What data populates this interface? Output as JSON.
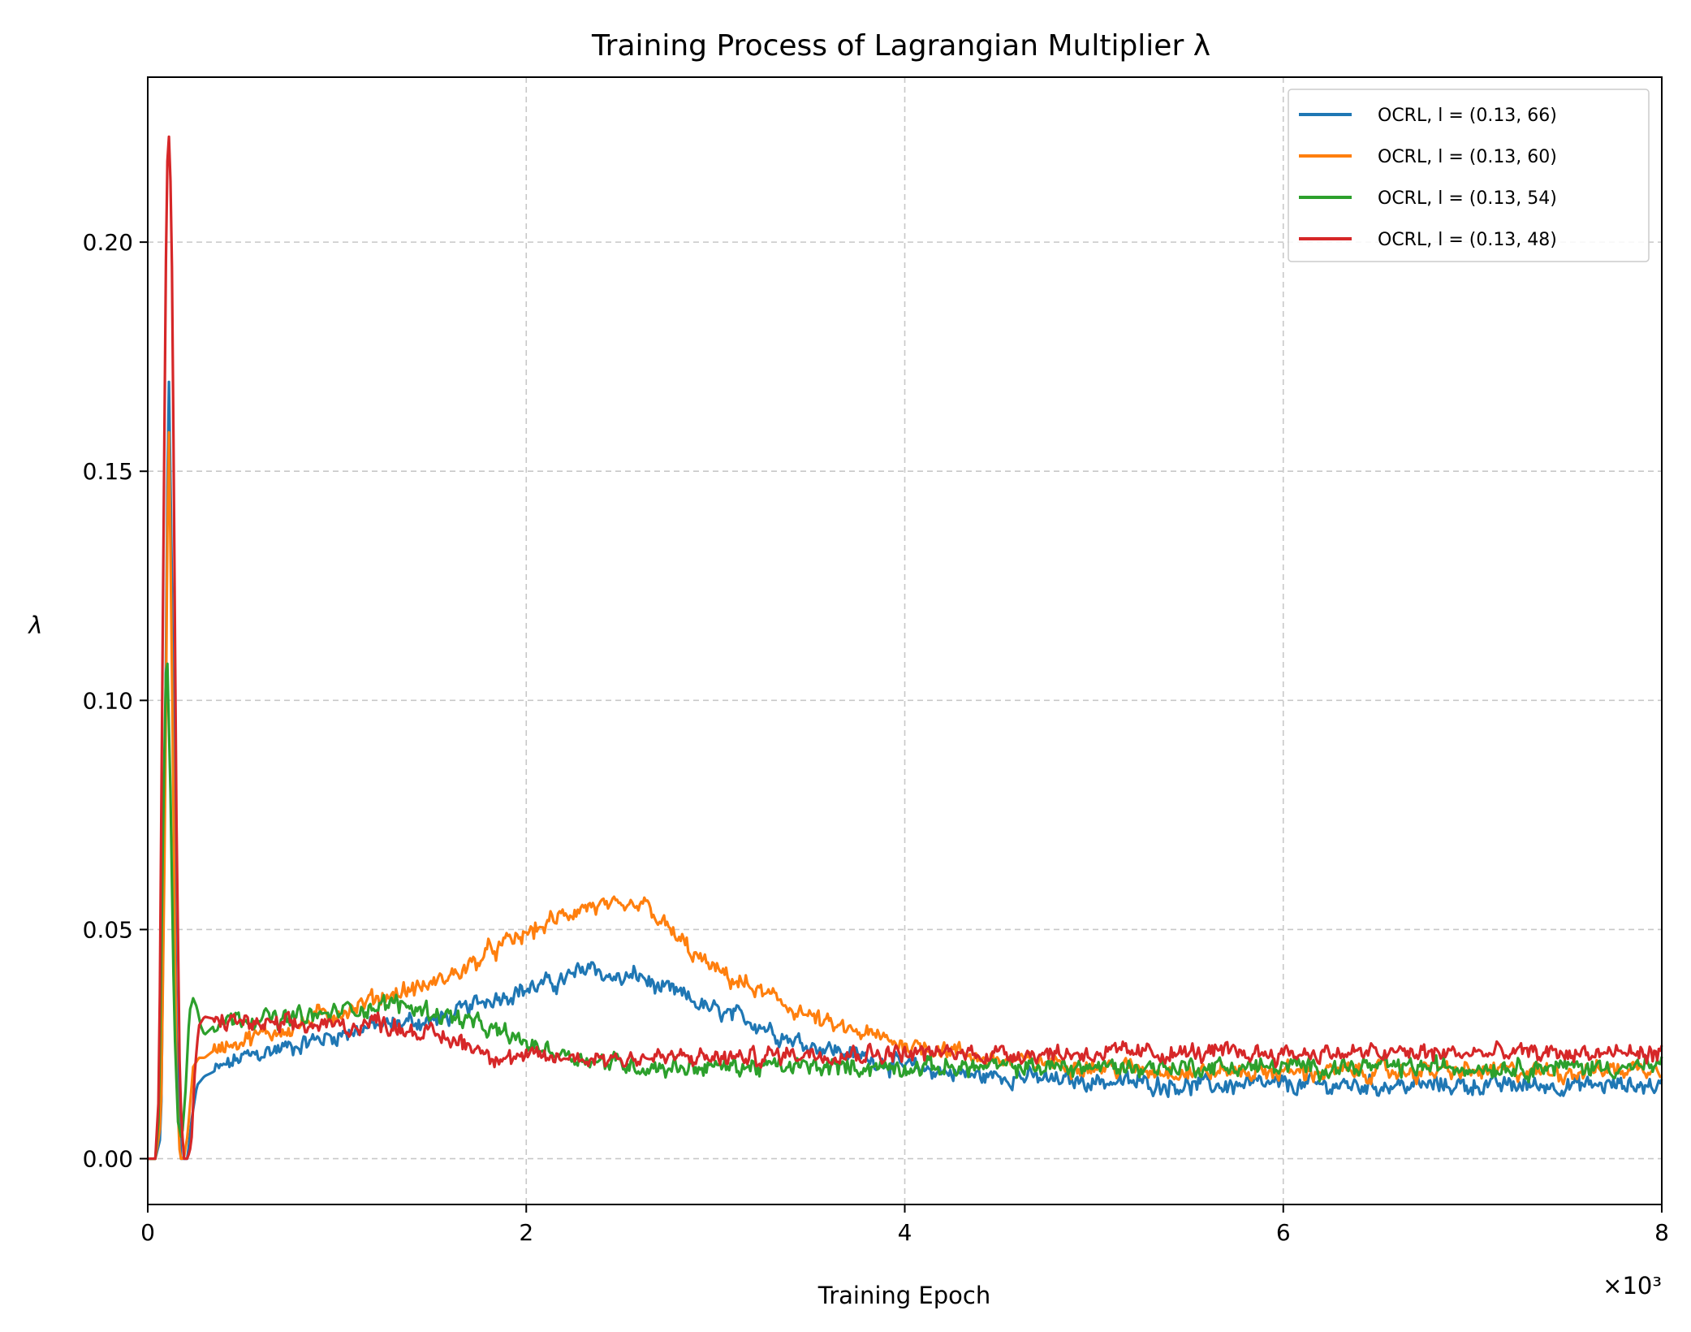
{
  "chart_data": {
    "type": "line",
    "title": "Training Process of Lagrangian Multiplier λ",
    "xlabel": "Training Epoch",
    "ylabel": "λ",
    "x_scale_label": "×10³",
    "xlim": [
      0,
      8000
    ],
    "ylim": [
      -0.01,
      0.236
    ],
    "x_ticks": [
      0,
      2000,
      4000,
      6000,
      8000
    ],
    "x_tick_labels": [
      "0",
      "2",
      "4",
      "6",
      "8"
    ],
    "y_ticks": [
      0.0,
      0.05,
      0.1,
      0.15,
      0.2
    ],
    "y_tick_labels": [
      "0.00",
      "0.05",
      "0.10",
      "0.15",
      "0.20"
    ],
    "grid": true,
    "legend_position": "top-right",
    "series": [
      {
        "name": "OCRL, l = (0.13, 66)",
        "color": "#1f77b4",
        "x": [
          0,
          40,
          70,
          90,
          110,
          130,
          150,
          175,
          190,
          210,
          230,
          260,
          300,
          350,
          400,
          500,
          600,
          700,
          800,
          900,
          1000,
          1100,
          1200,
          1300,
          1400,
          1500,
          1600,
          1700,
          1800,
          1900,
          2000,
          2100,
          2200,
          2300,
          2350,
          2400,
          2500,
          2600,
          2700,
          2800,
          2900,
          3000,
          3100,
          3200,
          3300,
          3400,
          3500,
          3600,
          3800,
          4000,
          4200,
          4400,
          4600,
          4800,
          5000,
          5500,
          6000,
          6500,
          7000,
          7500,
          8000
        ],
        "y": [
          0,
          0,
          0.005,
          0.08,
          0.175,
          0.12,
          0.03,
          0.0,
          0.0,
          0.0,
          0.008,
          0.016,
          0.018,
          0.019,
          0.02,
          0.022,
          0.023,
          0.024,
          0.025,
          0.026,
          0.027,
          0.028,
          0.029,
          0.029,
          0.03,
          0.03,
          0.031,
          0.033,
          0.035,
          0.036,
          0.037,
          0.038,
          0.039,
          0.041,
          0.043,
          0.04,
          0.039,
          0.04,
          0.037,
          0.036,
          0.034,
          0.032,
          0.031,
          0.03,
          0.028,
          0.026,
          0.025,
          0.024,
          0.022,
          0.02,
          0.019,
          0.018,
          0.018,
          0.017,
          0.017,
          0.016,
          0.016,
          0.016,
          0.016,
          0.016,
          0.016
        ]
      },
      {
        "name": "OCRL, l = (0.13, 60)",
        "color": "#ff7f0e",
        "x": [
          0,
          40,
          70,
          90,
          110,
          130,
          150,
          170,
          190,
          210,
          240,
          270,
          300,
          330,
          400,
          500,
          600,
          700,
          800,
          900,
          1000,
          1100,
          1200,
          1300,
          1400,
          1500,
          1600,
          1700,
          1800,
          1900,
          2000,
          2100,
          2200,
          2300,
          2400,
          2500,
          2600,
          2650,
          2700,
          2800,
          2900,
          3000,
          3100,
          3200,
          3300,
          3400,
          3500,
          3600,
          3700,
          3800,
          3900,
          4000,
          4200,
          4400,
          4600,
          4800,
          5000,
          5500,
          6000,
          6500,
          7000,
          7500,
          8000
        ],
        "y": [
          0,
          0,
          0.008,
          0.07,
          0.165,
          0.1,
          0.02,
          0.0,
          0.0,
          0.005,
          0.02,
          0.022,
          0.022,
          0.023,
          0.025,
          0.026,
          0.027,
          0.028,
          0.029,
          0.031,
          0.032,
          0.033,
          0.035,
          0.036,
          0.037,
          0.038,
          0.04,
          0.042,
          0.045,
          0.047,
          0.049,
          0.051,
          0.053,
          0.055,
          0.055,
          0.054,
          0.055,
          0.055,
          0.052,
          0.048,
          0.044,
          0.041,
          0.039,
          0.037,
          0.035,
          0.033,
          0.031,
          0.029,
          0.028,
          0.027,
          0.026,
          0.025,
          0.024,
          0.022,
          0.021,
          0.021,
          0.02,
          0.019,
          0.019,
          0.019,
          0.019,
          0.019,
          0.02
        ]
      },
      {
        "name": "OCRL, l = (0.13, 54)",
        "color": "#2ca02c",
        "x": [
          0,
          40,
          60,
          80,
          100,
          120,
          140,
          160,
          180,
          200,
          220,
          240,
          260,
          280,
          300,
          350,
          400,
          500,
          600,
          700,
          800,
          900,
          1000,
          1100,
          1200,
          1300,
          1400,
          1500,
          1600,
          1700,
          1800,
          1900,
          2000,
          2100,
          2200,
          2300,
          2400,
          2500,
          2600,
          2700,
          2800,
          3000,
          3200,
          3400,
          3600,
          3800,
          4000,
          4500,
          5000,
          5500,
          6000,
          6500,
          7000,
          7500,
          8000
        ],
        "y": [
          0,
          0,
          0.01,
          0.07,
          0.115,
          0.08,
          0.03,
          0.008,
          0.004,
          0.015,
          0.032,
          0.035,
          0.033,
          0.029,
          0.027,
          0.029,
          0.03,
          0.031,
          0.031,
          0.03,
          0.031,
          0.031,
          0.032,
          0.033,
          0.033,
          0.034,
          0.033,
          0.032,
          0.031,
          0.03,
          0.028,
          0.027,
          0.025,
          0.024,
          0.023,
          0.022,
          0.021,
          0.021,
          0.02,
          0.02,
          0.02,
          0.02,
          0.02,
          0.02,
          0.02,
          0.02,
          0.02,
          0.02,
          0.02,
          0.02,
          0.02,
          0.02,
          0.02,
          0.02,
          0.02
        ]
      },
      {
        "name": "OCRL, l = (0.13, 48)",
        "color": "#d62728",
        "x": [
          0,
          40,
          60,
          80,
          100,
          115,
          130,
          150,
          170,
          190,
          210,
          230,
          250,
          270,
          300,
          400,
          500,
          600,
          700,
          800,
          900,
          1000,
          1100,
          1200,
          1300,
          1400,
          1500,
          1600,
          1700,
          1800,
          1900,
          2000,
          2200,
          2400,
          2600,
          2800,
          3000,
          3200,
          3400,
          3600,
          3800,
          4000,
          4200,
          4400,
          4600,
          4800,
          5000,
          5500,
          6000,
          6500,
          7000,
          7500,
          8000
        ],
        "y": [
          0,
          0,
          0.015,
          0.12,
          0.215,
          0.225,
          0.19,
          0.08,
          0.015,
          0.0,
          0.0,
          0.003,
          0.02,
          0.029,
          0.031,
          0.03,
          0.03,
          0.029,
          0.029,
          0.029,
          0.029,
          0.029,
          0.029,
          0.03,
          0.029,
          0.028,
          0.027,
          0.026,
          0.025,
          0.023,
          0.022,
          0.022,
          0.022,
          0.022,
          0.022,
          0.022,
          0.022,
          0.022,
          0.023,
          0.023,
          0.023,
          0.023,
          0.023,
          0.023,
          0.023,
          0.023,
          0.023,
          0.023,
          0.023,
          0.023,
          0.023,
          0.023,
          0.023
        ]
      }
    ]
  }
}
